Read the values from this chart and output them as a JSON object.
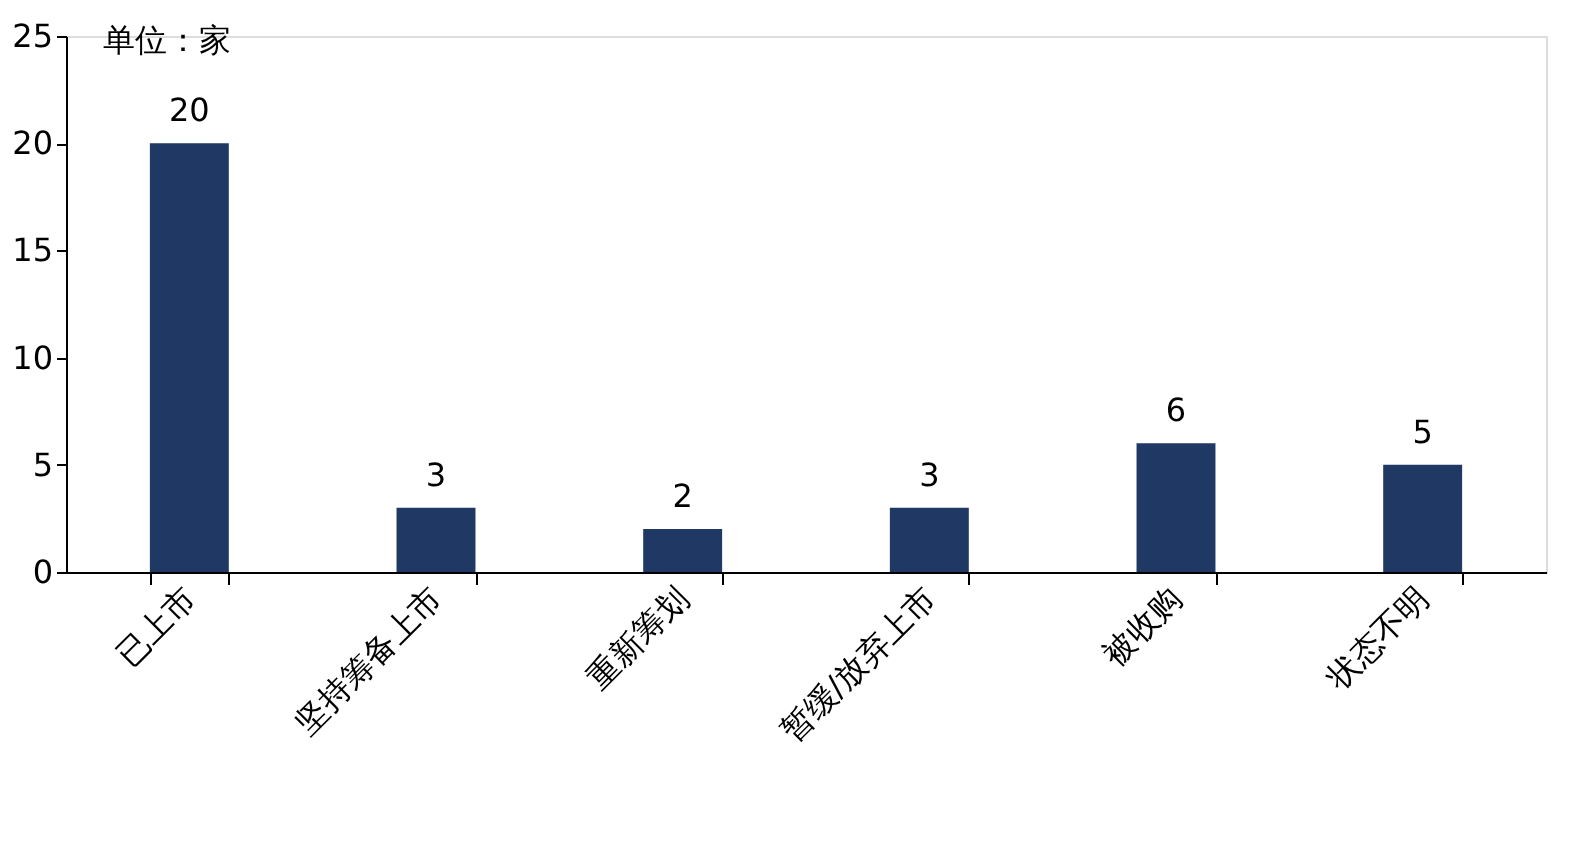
{
  "chart_data": {
    "type": "bar",
    "ylabel": "单位：家",
    "categories": [
      "已上市",
      "坚持筹备上市",
      "重新筹划",
      "暂缓/放弃上市",
      "被收购",
      "状态不明"
    ],
    "values": [
      20,
      3,
      2,
      3,
      6,
      5
    ],
    "color": "#1f3864",
    "ylim": [
      0,
      25
    ],
    "yticks": [
      0,
      5,
      10,
      15,
      20,
      25
    ],
    "grid": false,
    "data_labels": true
  }
}
